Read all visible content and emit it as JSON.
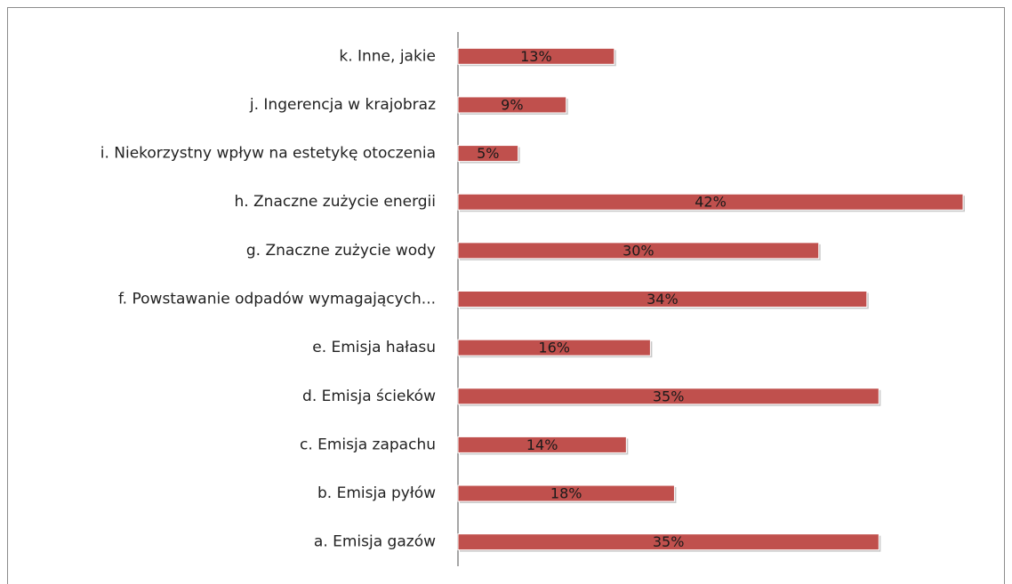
{
  "chart_data": {
    "type": "bar",
    "orientation": "horizontal",
    "categories": [
      "k. Inne, jakie",
      "j. Ingerencja w krajobraz",
      "i. Niekorzystny wpływ na estetykę otoczenia",
      "h. Znaczne zużycie energii",
      "g. Znaczne zużycie wody",
      "f. Powstawanie odpadów wymagających...",
      "e. Emisja hałasu",
      "d. Emisja ścieków",
      "c. Emisja zapachu",
      "b. Emisja pyłów",
      "a. Emisja gazów"
    ],
    "values": [
      13,
      9,
      5,
      42,
      30,
      34,
      16,
      35,
      14,
      18,
      35
    ],
    "value_labels": [
      "13%",
      "9%",
      "5%",
      "42%",
      "30%",
      "34%",
      "16%",
      "35%",
      "14%",
      "18%",
      "35%"
    ],
    "color": "#c0504d"
  }
}
